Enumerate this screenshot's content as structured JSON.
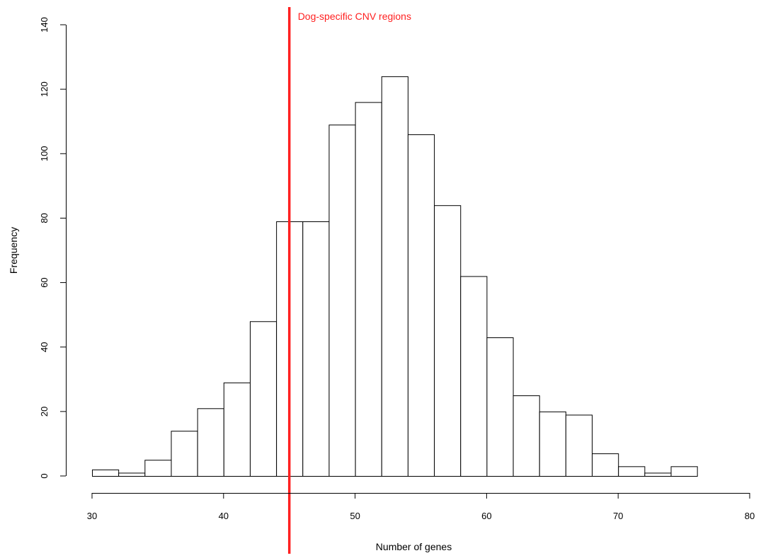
{
  "chart_data": {
    "type": "bar",
    "title": "",
    "xlabel": "Number of genes",
    "ylabel": "Frequency",
    "xlim": [
      30,
      80
    ],
    "ylim": [
      0,
      140
    ],
    "xticks": [
      30,
      40,
      50,
      60,
      70,
      80
    ],
    "yticks": [
      0,
      20,
      40,
      60,
      80,
      100,
      120,
      140
    ],
    "grid": false,
    "bins": [
      {
        "x0": 30,
        "x1": 32,
        "value": 2
      },
      {
        "x0": 32,
        "x1": 34,
        "value": 1
      },
      {
        "x0": 34,
        "x1": 36,
        "value": 5
      },
      {
        "x0": 36,
        "x1": 38,
        "value": 14
      },
      {
        "x0": 38,
        "x1": 40,
        "value": 21
      },
      {
        "x0": 40,
        "x1": 42,
        "value": 29
      },
      {
        "x0": 42,
        "x1": 44,
        "value": 48
      },
      {
        "x0": 44,
        "x1": 46,
        "value": 79
      },
      {
        "x0": 46,
        "x1": 48,
        "value": 79
      },
      {
        "x0": 48,
        "x1": 50,
        "value": 109
      },
      {
        "x0": 50,
        "x1": 52,
        "value": 116
      },
      {
        "x0": 52,
        "x1": 54,
        "value": 124
      },
      {
        "x0": 54,
        "x1": 56,
        "value": 106
      },
      {
        "x0": 56,
        "x1": 58,
        "value": 84
      },
      {
        "x0": 58,
        "x1": 60,
        "value": 62
      },
      {
        "x0": 60,
        "x1": 62,
        "value": 43
      },
      {
        "x0": 62,
        "x1": 64,
        "value": 25
      },
      {
        "x0": 64,
        "x1": 66,
        "value": 20
      },
      {
        "x0": 66,
        "x1": 68,
        "value": 19
      },
      {
        "x0": 68,
        "x1": 70,
        "value": 7
      },
      {
        "x0": 70,
        "x1": 72,
        "value": 3
      },
      {
        "x0": 72,
        "x1": 74,
        "value": 1
      },
      {
        "x0": 74,
        "x1": 76,
        "value": 3
      }
    ],
    "reference_line": {
      "x": 45,
      "label": "Dog-specific CNV regions",
      "color": "#ff2020"
    },
    "bar_fill": "#ffffff",
    "bar_stroke": "#000000"
  }
}
